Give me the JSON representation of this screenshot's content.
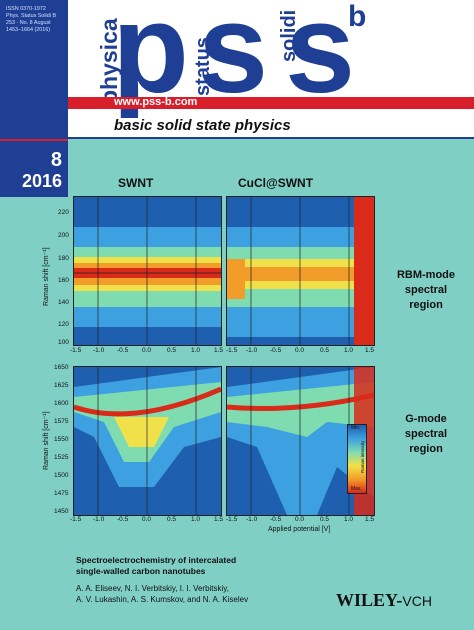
{
  "journal": {
    "issn_lines": "ISSN 0370-1972\nPhys. Status Solidi B\n253 · No. 8 August\n1453–1664 (2016)",
    "letters": {
      "p": "p",
      "s1": "s",
      "s2": "s",
      "sup": "b"
    },
    "vertical": {
      "physica": "physica",
      "status": "status",
      "solidi": "solidi"
    },
    "url": "www.pss-b.com",
    "subtitle": "basic solid state physics",
    "issue": "8",
    "year": "2016"
  },
  "figure": {
    "col_titles": [
      "SWNT",
      "CuCl@SWNT"
    ],
    "ylabel": "Raman shift [cm⁻¹]",
    "top_yticks": [
      "220",
      "200",
      "180",
      "160",
      "140",
      "120",
      "100"
    ],
    "bottom_yticks": [
      "1650",
      "1625",
      "1600",
      "1575",
      "1550",
      "1525",
      "1500",
      "1475",
      "1450"
    ],
    "xticks": [
      "-1.5",
      "-1.0",
      "-0.5",
      "0.0",
      "0.5",
      "1.0",
      "1.5"
    ],
    "xlabel": "Applied potential [V]",
    "labels": {
      "rbm": "RBM-mode\nspectral\nregion",
      "g": "G-mode\nspectral\nregion"
    },
    "colorbar": {
      "min": "Min.",
      "max": "Max.",
      "label": "Raman intensity"
    }
  },
  "article": {
    "title": "Spectroelectrochemistry of intercalated\nsingle-walled carbon nanotubes",
    "authors": "A. A. Eliseev, N. I. Verbitskiy, I. I. Verbitskiy,\nA. V. Lukashin, A. S. Kumskov, and N. A. Kiselev"
  },
  "publisher": {
    "main": "WILEY",
    "sep": "-",
    "vch": "VCH"
  },
  "colors": {
    "brand_blue": "#1f3f95",
    "brand_red": "#d91e2b",
    "background": "#7fcfc5"
  }
}
